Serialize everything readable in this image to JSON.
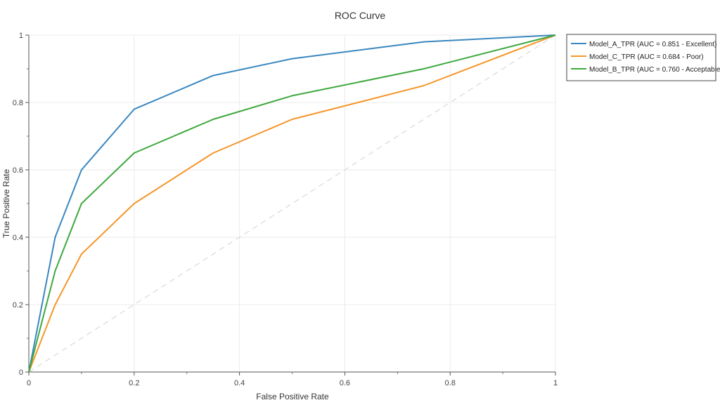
{
  "chart_data": {
    "type": "line",
    "title": "ROC Curve",
    "xlabel": "False Positive Rate",
    "ylabel": "True Positive Rate",
    "xlim": [
      0,
      1
    ],
    "ylim": [
      0,
      1
    ],
    "grid": true,
    "legend_position": "right",
    "x_ticks": [
      "0",
      "0.2",
      "0.4",
      "0.6",
      "0.8",
      "1"
    ],
    "y_ticks": [
      "0",
      "0.2",
      "0.4",
      "0.6",
      "0.8",
      "1"
    ],
    "series": [
      {
        "name": "Model_A_TPR (AUC = 0.851 - Excellent)",
        "color": "#3a87c0",
        "x": [
          0,
          0.05,
          0.1,
          0.2,
          0.35,
          0.5,
          0.75,
          1.0
        ],
        "y": [
          0,
          0.4,
          0.6,
          0.78,
          0.88,
          0.93,
          0.98,
          1.0
        ]
      },
      {
        "name": "Model_C_TPR (AUC = 0.684 - Poor)",
        "color": "#f5962a",
        "x": [
          0,
          0.05,
          0.1,
          0.2,
          0.35,
          0.5,
          0.75,
          1.0
        ],
        "y": [
          0,
          0.2,
          0.35,
          0.5,
          0.65,
          0.75,
          0.85,
          1.0
        ]
      },
      {
        "name": "Model_B_TPR (AUC = 0.760 - Acceptable)",
        "color": "#3ea83e",
        "x": [
          0,
          0.05,
          0.1,
          0.2,
          0.35,
          0.5,
          0.75,
          1.0
        ],
        "y": [
          0,
          0.3,
          0.5,
          0.65,
          0.75,
          0.82,
          0.9,
          1.0
        ]
      }
    ],
    "reference_line": {
      "style": "dashed",
      "color": "#d9d9d9",
      "x": [
        0,
        1
      ],
      "y": [
        0,
        1
      ]
    }
  }
}
